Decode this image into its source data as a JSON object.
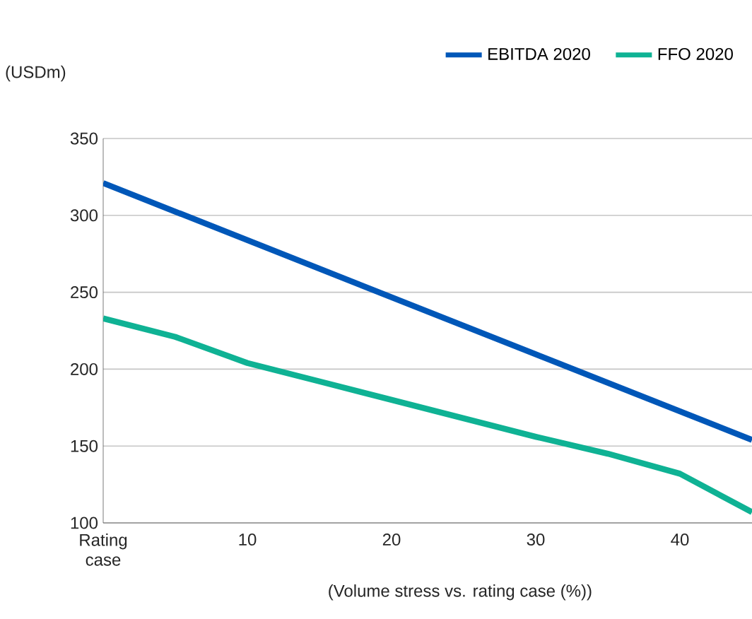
{
  "chart_data": {
    "type": "line",
    "ylabel": "(USDm)",
    "xlabel": "(Volume stress vs. rating case (%))",
    "xlim": [
      0,
      45
    ],
    "xticks": [
      {
        "value": 0,
        "label": "Rating case"
      },
      10,
      20,
      30,
      40
    ],
    "ylim": [
      100,
      350
    ],
    "yticks": [
      100,
      150,
      200,
      250,
      300,
      350
    ],
    "grid": "y",
    "legend": "top",
    "marker": "none",
    "line_style": "solid",
    "series": [
      {
        "name": "EBITDA 2020",
        "color": "#0057b8",
        "x": [
          0,
          45
        ],
        "values": [
          321,
          154
        ]
      },
      {
        "name": "FFO 2020",
        "color": "#0fb294",
        "x": [
          0,
          5,
          10,
          15,
          20,
          25,
          30,
          35,
          40,
          45
        ],
        "values": [
          233,
          221,
          204,
          192,
          180,
          168,
          156,
          145,
          132,
          107
        ]
      }
    ]
  }
}
